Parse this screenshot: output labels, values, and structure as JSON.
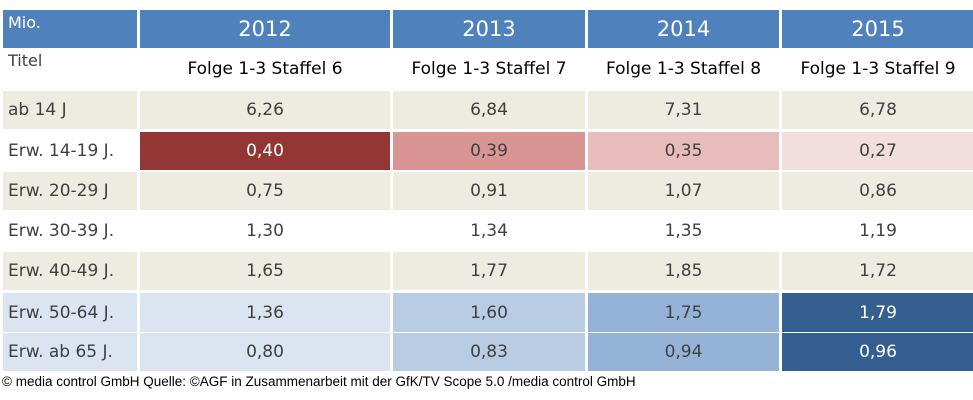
{
  "chart_data": {
    "type": "table",
    "corner_label": "Mio.",
    "row_header_label": "Titel",
    "columns": [
      {
        "year": "2012",
        "title": "Folge 1-3 Staffel 6"
      },
      {
        "year": "2013",
        "title": "Folge 1-3 Staffel 7"
      },
      {
        "year": "2014",
        "title": "Folge 1-3 Staffel 8"
      },
      {
        "year": "2015",
        "title": "Folge 1-3 Staffel 9"
      }
    ],
    "rows": [
      {
        "label": "ab 14 J",
        "values": [
          "6,26",
          "6,84",
          "7,31",
          "6,78"
        ],
        "fills": [
          "#eeece1",
          "#eeece1",
          "#eeece1",
          "#eeece1"
        ],
        "text_colors": [
          "#404040",
          "#404040",
          "#404040",
          "#404040"
        ]
      },
      {
        "label": "Erw. 14-19 J.",
        "values": [
          "0,40",
          "0,39",
          "0,35",
          "0,27"
        ],
        "fills": [
          "#943634",
          "#d99594",
          "#e8bcbb",
          "#f3dede"
        ],
        "text_colors": [
          "#ffffff",
          "#404040",
          "#404040",
          "#404040"
        ]
      },
      {
        "label": "Erw. 20-29 J",
        "values": [
          "0,75",
          "0,91",
          "1,07",
          "0,86"
        ],
        "fills": [
          "#eeece1",
          "#eeece1",
          "#eeece1",
          "#eeece1"
        ],
        "text_colors": [
          "#404040",
          "#404040",
          "#404040",
          "#404040"
        ]
      },
      {
        "label": "Erw. 30-39 J.",
        "values": [
          "1,30",
          "1,34",
          "1,35",
          "1,19"
        ],
        "fills": [
          "#ffffff",
          "#ffffff",
          "#ffffff",
          "#ffffff"
        ],
        "text_colors": [
          "#404040",
          "#404040",
          "#404040",
          "#404040"
        ]
      },
      {
        "label": "Erw. 40-49 J.",
        "values": [
          "1,65",
          "1,77",
          "1,85",
          "1,72"
        ],
        "fills": [
          "#eeece1",
          "#eeece1",
          "#eeece1",
          "#eeece1"
        ],
        "text_colors": [
          "#404040",
          "#404040",
          "#404040",
          "#404040"
        ]
      },
      {
        "label": "Erw. 50-64 J.",
        "values": [
          "1,36",
          "1,60",
          "1,75",
          "1,79"
        ],
        "fills": [
          "#dbe5f1",
          "#b8cce4",
          "#95b3d7",
          "#365f91"
        ],
        "text_colors": [
          "#404040",
          "#404040",
          "#404040",
          "#ffffff"
        ]
      },
      {
        "label": "Erw. ab 65 J.",
        "values": [
          "0,80",
          "0,83",
          "0,94",
          "0,96"
        ],
        "fills": [
          "#dbe5f1",
          "#b8cce4",
          "#95b3d7",
          "#365f91"
        ],
        "text_colors": [
          "#404040",
          "#404040",
          "#404040",
          "#ffffff"
        ]
      }
    ],
    "first_column_fills": [
      "#eeece1",
      "#ffffff",
      "#eeece1",
      "#ffffff",
      "#eeece1",
      "#dbe5f1",
      "#dbe5f1"
    ],
    "colors": {
      "header_bg": "#4f81bd",
      "header_text": "#ffffff"
    }
  },
  "footer": "© media control GmbH Quelle: ©AGF in Zusammenarbeit mit der GfK/TV Scope 5.0 /media control GmbH"
}
